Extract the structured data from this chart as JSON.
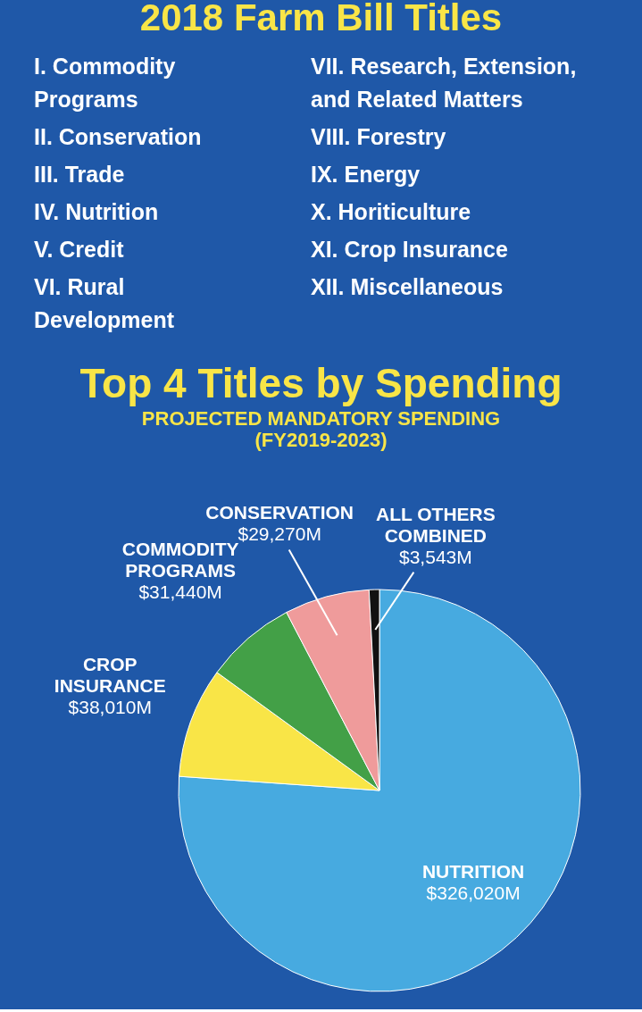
{
  "chart_data": [
    {
      "type": "other",
      "title": "2018 Farm Bill Titles",
      "annotations": [
        "I. Commodity Programs",
        "II. Conservation",
        "III. Trade",
        "IV. Nutrition",
        "V. Credit",
        "VI. Rural Development",
        "VII. Research, Extension, and Related Matters",
        "VIII. Forestry",
        "IX. Energy",
        "X. Horiticulture",
        "XI. Crop Insurance",
        "XII. Miscellaneous"
      ]
    },
    {
      "type": "pie",
      "title": "Top 4 Titles by Spending",
      "subtitle": "PROJECTED MANDATORY SPENDING (FY2019-2023)",
      "categories": [
        "NUTRITION",
        "CROP INSURANCE",
        "COMMODITY PROGRAMS",
        "CONSERVATION",
        "ALL OTHERS COMBINED"
      ],
      "values": [
        326020,
        38010,
        31440,
        29270,
        3543
      ],
      "value_labels": [
        "$326,020M",
        "$38,010M",
        "$31,440M",
        "$29,270M",
        "$3,543M"
      ],
      "colors": [
        "#47aae0",
        "#f9e547",
        "#43a047",
        "#ef9b9b",
        "#111111"
      ]
    }
  ]
}
